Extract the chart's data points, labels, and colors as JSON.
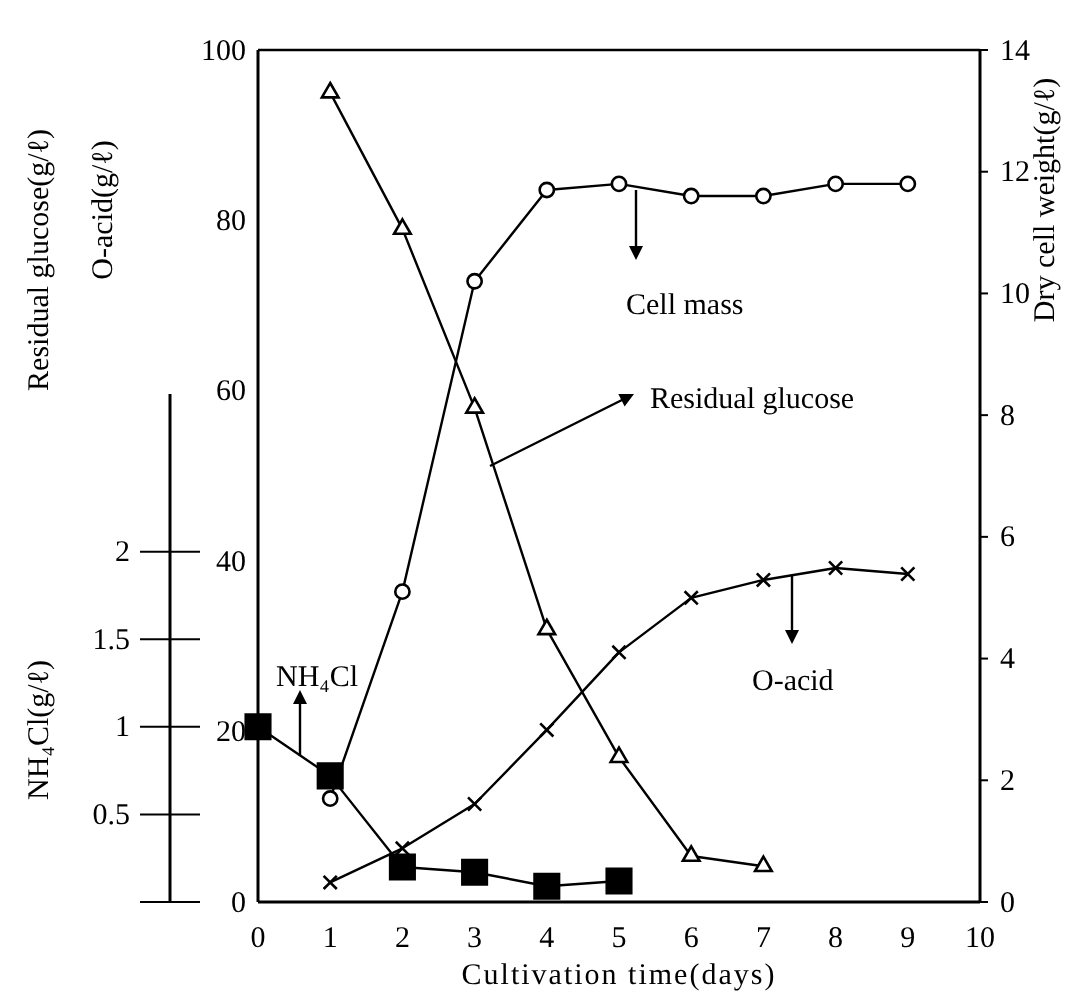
{
  "chart_data": {
    "type": "line",
    "xlabel": "Cultivation time(days)",
    "ylabel": "Residual glucose(g/ℓ)\nO-acid(g/ℓ)",
    "y2label": "Dry cell weight(g/ℓ)",
    "y3label": "NH₄Cl(g/ℓ)",
    "xlim": [
      0,
      10
    ],
    "xticks": [
      0,
      1,
      2,
      3,
      4,
      5,
      6,
      7,
      8,
      9,
      10
    ],
    "ylim": [
      0,
      100
    ],
    "yticks": [
      0,
      20,
      40,
      60,
      80,
      100
    ],
    "y2lim": [
      0,
      14
    ],
    "y2ticks": [
      0,
      2,
      4,
      6,
      8,
      10,
      12,
      14
    ],
    "y3lim": [
      0,
      2.9
    ],
    "y3ticks": [
      {
        "value": 0,
        "label": null
      },
      0.5,
      1,
      1.5,
      2
    ],
    "line_style": "solid",
    "series": [
      {
        "color": "#000000",
        "marker": "triangle",
        "x": [
          1,
          2,
          3,
          4,
          5,
          6,
          7
        ],
        "values": [
          95,
          79,
          58,
          32,
          17,
          5.4,
          4.2
        ]
      },
      {
        "color": "#000000",
        "marker": "circle",
        "axis": "y2",
        "x": [
          1,
          2,
          3,
          4,
          5,
          6,
          7,
          8,
          9
        ],
        "values": [
          1.7,
          5.1,
          10.2,
          11.7,
          11.8,
          11.6,
          11.6,
          11.8,
          11.8
        ]
      },
      {
        "color": "#000000",
        "marker": "cross",
        "x": [
          1,
          2,
          3,
          4,
          5,
          6,
          7,
          8,
          9
        ],
        "values": [
          2.3,
          6.3,
          11.5,
          20.2,
          29.3,
          35.7,
          37.8,
          39.2,
          38.5
        ]
      },
      {
        "color": "#000000",
        "marker": "square",
        "axis": "y3",
        "x": [
          0,
          1,
          2,
          3,
          4,
          5
        ],
        "values": [
          1.0,
          0.72,
          0.2,
          0.17,
          0.09,
          0.12
        ]
      }
    ],
    "annotations": [
      "Cell mass",
      "Residual glucose",
      "O-acid",
      "NH₄Cl"
    ]
  }
}
